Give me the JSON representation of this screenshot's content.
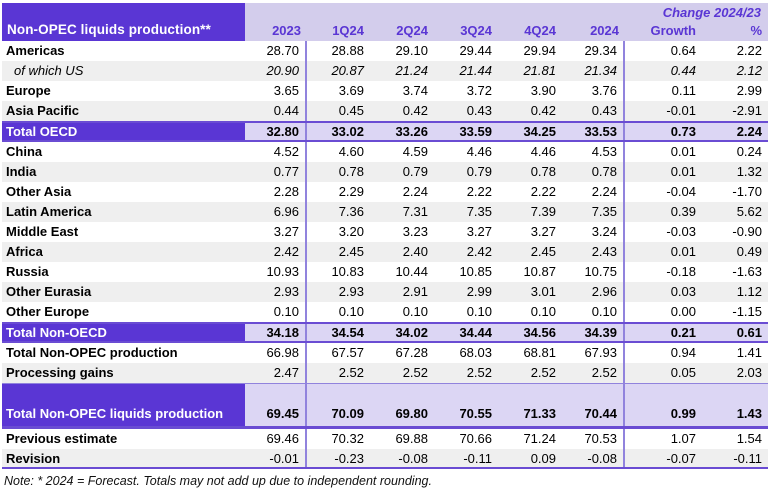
{
  "colors": {
    "header_purple": "#5a36d4",
    "band_lavender": "#d3cdec",
    "total_row_bg": "#dcd6f4",
    "alt_row_bg": "#efefef",
    "divider_purple": "#9183dd",
    "border_purple": "#6a4cd3"
  },
  "table": {
    "corner_label": "Non-OPEC liquids production**",
    "change_header": "Change 2024/23",
    "columns": [
      "2023",
      "1Q24",
      "2Q24",
      "3Q24",
      "4Q24",
      "2024",
      "Growth",
      "%"
    ],
    "rows": [
      {
        "label": "Americas",
        "style": "plain",
        "shaded": false,
        "values": [
          "28.70",
          "28.88",
          "29.10",
          "29.44",
          "29.94",
          "29.34",
          "0.64",
          "2.22"
        ]
      },
      {
        "label": "of which US",
        "style": "italic",
        "shaded": true,
        "values": [
          "20.90",
          "20.87",
          "21.24",
          "21.44",
          "21.81",
          "21.34",
          "0.44",
          "2.12"
        ]
      },
      {
        "label": "Europe",
        "style": "plain",
        "shaded": false,
        "values": [
          "3.65",
          "3.69",
          "3.74",
          "3.72",
          "3.90",
          "3.76",
          "0.11",
          "2.99"
        ]
      },
      {
        "label": "Asia Pacific",
        "style": "plain",
        "shaded": true,
        "values": [
          "0.44",
          "0.45",
          "0.42",
          "0.43",
          "0.42",
          "0.43",
          "-0.01",
          "-2.91"
        ]
      },
      {
        "label": "Total OECD",
        "style": "total",
        "shaded": false,
        "values": [
          "32.80",
          "33.02",
          "33.26",
          "33.59",
          "34.25",
          "33.53",
          "0.73",
          "2.24"
        ]
      },
      {
        "label": "China",
        "style": "plain",
        "shaded": false,
        "values": [
          "4.52",
          "4.60",
          "4.59",
          "4.46",
          "4.46",
          "4.53",
          "0.01",
          "0.24"
        ]
      },
      {
        "label": "India",
        "style": "plain",
        "shaded": true,
        "values": [
          "0.77",
          "0.78",
          "0.79",
          "0.79",
          "0.78",
          "0.78",
          "0.01",
          "1.32"
        ]
      },
      {
        "label": "Other Asia",
        "style": "plain",
        "shaded": false,
        "values": [
          "2.28",
          "2.29",
          "2.24",
          "2.22",
          "2.22",
          "2.24",
          "-0.04",
          "-1.70"
        ]
      },
      {
        "label": "Latin America",
        "style": "plain",
        "shaded": true,
        "values": [
          "6.96",
          "7.36",
          "7.31",
          "7.35",
          "7.39",
          "7.35",
          "0.39",
          "5.62"
        ]
      },
      {
        "label": "Middle East",
        "style": "plain",
        "shaded": false,
        "values": [
          "3.27",
          "3.20",
          "3.23",
          "3.27",
          "3.27",
          "3.24",
          "-0.03",
          "-0.90"
        ]
      },
      {
        "label": "Africa",
        "style": "plain",
        "shaded": true,
        "values": [
          "2.42",
          "2.45",
          "2.40",
          "2.42",
          "2.45",
          "2.43",
          "0.01",
          "0.49"
        ]
      },
      {
        "label": "Russia",
        "style": "plain",
        "shaded": false,
        "values": [
          "10.93",
          "10.83",
          "10.44",
          "10.85",
          "10.87",
          "10.75",
          "-0.18",
          "-1.63"
        ]
      },
      {
        "label": "Other Eurasia",
        "style": "plain",
        "shaded": true,
        "values": [
          "2.93",
          "2.93",
          "2.91",
          "2.99",
          "3.01",
          "2.96",
          "0.03",
          "1.12"
        ]
      },
      {
        "label": "Other Europe",
        "style": "plain",
        "shaded": false,
        "values": [
          "0.10",
          "0.10",
          "0.10",
          "0.10",
          "0.10",
          "0.10",
          "0.00",
          "-1.15"
        ]
      },
      {
        "label": "Total Non-OECD",
        "style": "total",
        "shaded": false,
        "values": [
          "34.18",
          "34.54",
          "34.02",
          "34.44",
          "34.56",
          "34.39",
          "0.21",
          "0.61"
        ]
      },
      {
        "label": "Total Non-OPEC production",
        "style": "plain",
        "shaded": false,
        "values": [
          "66.98",
          "67.57",
          "67.28",
          "68.03",
          "68.81",
          "67.93",
          "0.94",
          "1.41"
        ]
      },
      {
        "label": "Processing gains",
        "style": "plain",
        "shaded": true,
        "values": [
          "2.47",
          "2.52",
          "2.52",
          "2.52",
          "2.52",
          "2.52",
          "0.05",
          "2.03"
        ]
      },
      {
        "label": "Total Non-OPEC liquids production",
        "style": "grand",
        "shaded": false,
        "values": [
          "69.45",
          "70.09",
          "69.80",
          "70.55",
          "71.33",
          "70.44",
          "0.99",
          "1.43"
        ]
      },
      {
        "label": "Previous estimate",
        "style": "plain",
        "shaded": false,
        "values": [
          "69.46",
          "70.32",
          "69.88",
          "70.66",
          "71.24",
          "70.53",
          "1.07",
          "1.54"
        ]
      },
      {
        "label": "Revision",
        "style": "plain",
        "shaded": true,
        "last": true,
        "values": [
          "-0.01",
          "-0.23",
          "-0.08",
          "-0.11",
          "0.09",
          "-0.08",
          "-0.07",
          "-0.11"
        ]
      }
    ],
    "note": "Note: * 2024 = Forecast. Totals may not add up due to independent rounding."
  }
}
